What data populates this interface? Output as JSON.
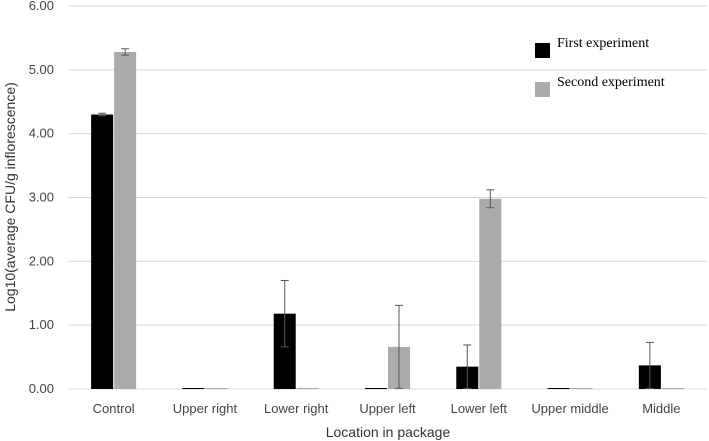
{
  "chart_data": {
    "type": "bar",
    "title": "",
    "xlabel": "Location in package",
    "ylabel": "Log10(average CFU/g inflorescence)",
    "categories": [
      "Control",
      "Upper right",
      "Lower right",
      "Upper left",
      "Lower left",
      "Upper middle",
      "Middle"
    ],
    "ylim": [
      0,
      6
    ],
    "yticks": [
      "0.00",
      "1.00",
      "2.00",
      "3.00",
      "4.00",
      "5.00",
      "6.00"
    ],
    "grid": true,
    "legend_position": "top-right",
    "series": [
      {
        "name": "First experiment",
        "color": "#000000",
        "values": [
          4.3,
          0.0,
          1.18,
          0.0,
          0.35,
          0.0,
          0.37
        ],
        "errors": [
          0.02,
          0.0,
          0.52,
          0.0,
          0.34,
          0.0,
          0.36
        ]
      },
      {
        "name": "Second experiment",
        "color": "#adaaaa",
        "values": [
          5.28,
          0.0,
          0.0,
          0.66,
          2.98,
          0.0,
          0.0
        ],
        "errors": [
          0.05,
          0.0,
          0.0,
          0.65,
          0.14,
          0.0,
          0.0
        ]
      }
    ]
  }
}
